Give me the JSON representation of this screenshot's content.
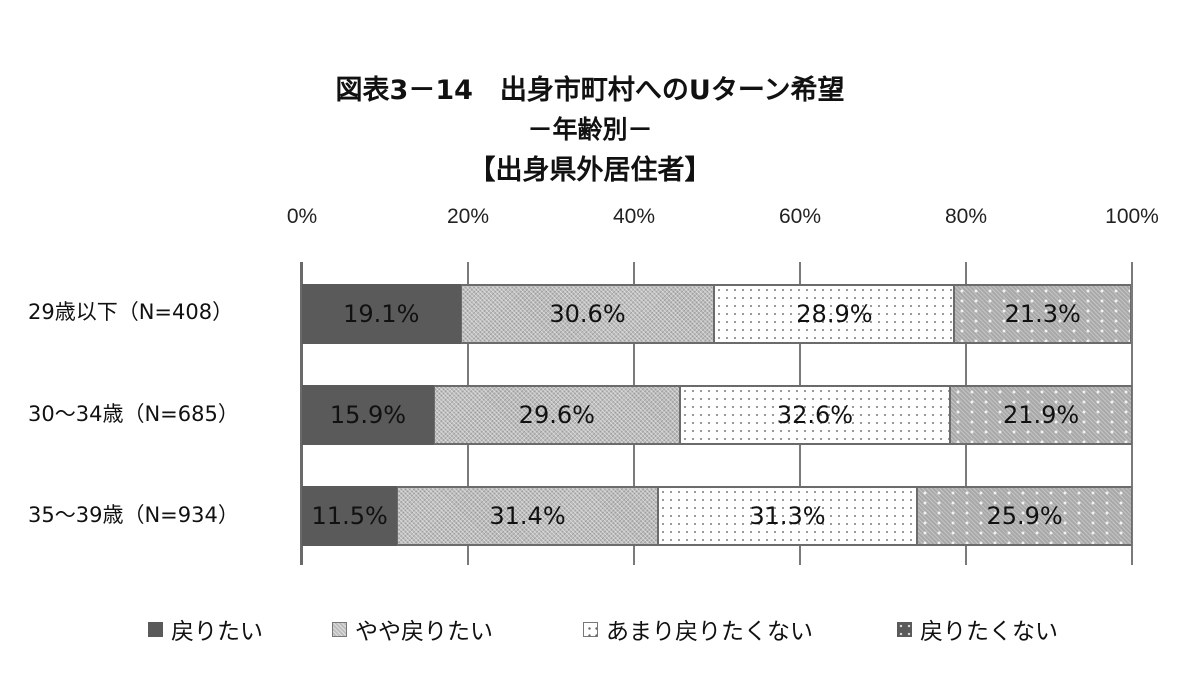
{
  "chart_data": {
    "type": "bar",
    "orientation": "horizontal",
    "stacked": "100%",
    "title": "図表3－14　出身市町村へのUターン希望",
    "subtitle": "－年齢別－",
    "subtitle2": "【出身県外居住者】",
    "xlabel": "",
    "ylabel": "",
    "xlim": [
      0,
      100
    ],
    "x_ticks": [
      "0%",
      "20%",
      "40%",
      "60%",
      "80%",
      "100%"
    ],
    "grid": true,
    "legend_position": "bottom",
    "categories": [
      "29歳以下（N=408）",
      "30～34歳（N=685）",
      "35～39歳（N=934）"
    ],
    "series": [
      {
        "name": "戻りたい",
        "values": [
          19.1,
          15.9,
          11.5
        ],
        "labels": [
          "19.1%",
          "15.9%",
          "11.5%"
        ],
        "color": "#5a5a5a"
      },
      {
        "name": "やや戻りたい",
        "values": [
          30.6,
          29.6,
          31.4
        ],
        "labels": [
          "30.6%",
          "29.6%",
          "31.4%"
        ],
        "color": "#bdbdbd"
      },
      {
        "name": "あまり戻りたくない",
        "values": [
          28.9,
          32.6,
          31.3
        ],
        "labels": [
          "28.9%",
          "32.6%",
          "31.3%"
        ],
        "color": "#ffffff"
      },
      {
        "name": "戻りたくない",
        "values": [
          21.3,
          21.9,
          25.9
        ],
        "labels": [
          "21.3%",
          "21.9%",
          "25.9%"
        ],
        "color": "#a9a9a9"
      }
    ]
  },
  "header": {
    "title": "図表3－14　出身市町村へのUターン希望",
    "subtitle": "－年齢別－",
    "subtitle2": "【出身県外居住者】"
  }
}
